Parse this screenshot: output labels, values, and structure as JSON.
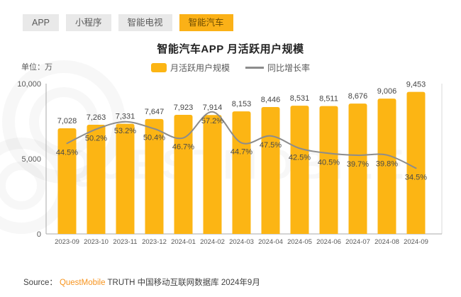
{
  "tabs": {
    "items": [
      {
        "label": "APP",
        "active": false
      },
      {
        "label": "小程序",
        "active": false
      },
      {
        "label": "智能电视",
        "active": false
      },
      {
        "label": "智能汽车",
        "active": true
      }
    ]
  },
  "header": {
    "title": "智能汽车APP 月活跃用户规模",
    "unit_label": "单位：万"
  },
  "legend": {
    "bar_label": "月活跃用户规模",
    "line_label": "同比增长率"
  },
  "chart_data": {
    "type": "bar",
    "title": "智能汽车APP 月活跃用户规模",
    "unit": "万",
    "categories": [
      "2023-09",
      "2023-10",
      "2023-11",
      "2023-12",
      "2024-01",
      "2024-02",
      "2024-03",
      "2024-04",
      "2024-05",
      "2024-06",
      "2024-07",
      "2024-08",
      "2024-09"
    ],
    "series": [
      {
        "name": "月活跃用户规模",
        "type": "bar",
        "unit": "万",
        "values": [
          7028,
          7263,
          7331,
          7647,
          7923,
          7914,
          8153,
          8446,
          8531,
          8511,
          8676,
          9006,
          9453
        ]
      },
      {
        "name": "同比增长率",
        "type": "line",
        "unit": "%",
        "values": [
          44.5,
          50.2,
          53.2,
          50.4,
          46.7,
          57.2,
          44.7,
          47.5,
          42.5,
          40.5,
          39.7,
          39.8,
          34.5
        ]
      }
    ],
    "ylim": [
      0,
      10000
    ],
    "y_ticks": [
      "10,000",
      "5,000",
      "0"
    ],
    "legend_position": "top",
    "grid": false
  },
  "footer": {
    "source_label": "Source：",
    "brand": "QuestMobile",
    "source_text": "TRUTH 中国移动互联网数据库 2024年9月"
  },
  "colors": {
    "bar": "#FCB514",
    "line": "#8C8C8C",
    "tab_active_bg": "#FBB117",
    "tab_active_text": "#6B4A00",
    "brand_orange": "#F7941E",
    "axis": "#AAAAAA"
  },
  "watermark": {
    "text": "QUESTMOBILE"
  }
}
